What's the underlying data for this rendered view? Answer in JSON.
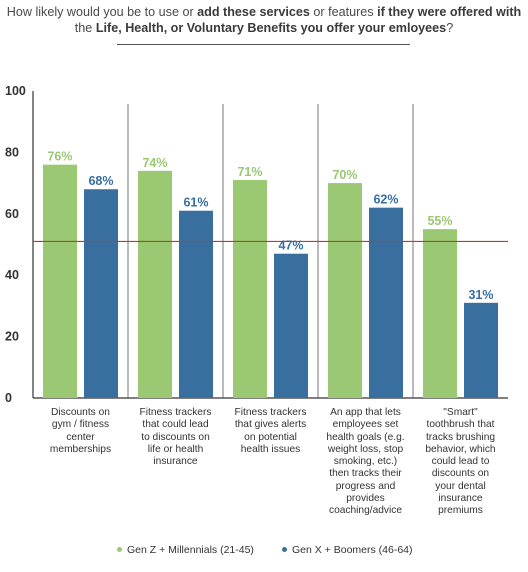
{
  "title": {
    "p1": "How likely would you be to use or ",
    "p2": "add these services",
    "p3": " or features ",
    "p4": "if they were offered with",
    "p5": "the ",
    "p6": "Life, Health, or Voluntary Benefits you offer your emloyees",
    "p7": "?"
  },
  "colors": {
    "series1": "#9bc873",
    "series2": "#396f9f",
    "refline": "#c0392b",
    "axis": "#333333"
  },
  "chart_data": {
    "type": "bar",
    "categories": [
      "Discounts on gym / fitness center memberships",
      "Fitness trackers that could lead to discounts on life or health insurance",
      "Fitness trackers that gives alerts on potential health issues",
      "An app that lets employees set health goals (e.g. weight loss, stop smoking, etc.) then tracks their progress and provides coaching/advice",
      "\"Smart\" toothbrush that tracks brushing behavior, which could lead to discounts on your dental insurance premiums"
    ],
    "category_lines": [
      [
        "Discounts on",
        "gym / fitness",
        "center",
        "memberships"
      ],
      [
        "Fitness trackers",
        "that could lead",
        "to discounts on",
        "life or health",
        "insurance"
      ],
      [
        "Fitness trackers",
        "that gives alerts",
        "on potential",
        "health issues"
      ],
      [
        "An app that lets",
        "employees set",
        "health goals (e.g.",
        "weight loss, stop",
        "smoking, etc.)",
        "then tracks their",
        "progress and",
        "provides",
        "coaching/advice"
      ],
      [
        "\"Smart\"",
        "toothbrush that",
        "tracks brushing",
        "behavior, which",
        "could lead to",
        "discounts on",
        "your dental",
        "insurance",
        "premiums"
      ]
    ],
    "series": [
      {
        "name": "Gen Z + Millennials (21-45)",
        "values": [
          76,
          74,
          71,
          70,
          55
        ],
        "labels": [
          "76%",
          "74%",
          "71%",
          "70%",
          "55%"
        ]
      },
      {
        "name": "Gen X + Boomers (46-64)",
        "values": [
          68,
          61,
          47,
          62,
          31
        ],
        "labels": [
          "68%",
          "61%",
          "47%",
          "62%",
          "31%"
        ]
      }
    ],
    "yticks": [
      "100",
      "80",
      "60",
      "40",
      "20",
      "0"
    ],
    "ylim": [
      0,
      100
    ],
    "reference_line": 51,
    "legend_position": "bottom"
  }
}
